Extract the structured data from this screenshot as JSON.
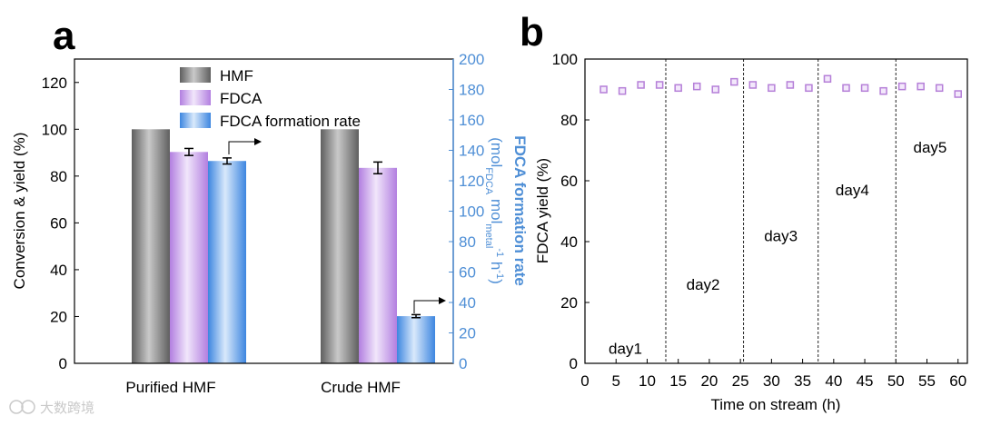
{
  "chart_data": [
    {
      "panel": "a",
      "type": "bar",
      "categories": [
        "Purified HMF",
        "Crude HMF"
      ],
      "ylabel": "Conversion & yield (%)",
      "ylim": [
        0,
        130
      ],
      "yticks": [
        0,
        20,
        40,
        60,
        80,
        100,
        120
      ],
      "y2label": "FDCA formation rate",
      "y2label_units": "(mol",
      "y2label_sub1": "FDCA",
      "y2label_mid": " mol",
      "y2label_sub2": "metal",
      "y2label_sup1": "-1",
      "y2label_end": " h",
      "y2label_sup2": "-1",
      "y2label_close": ")",
      "y2lim": [
        0,
        200
      ],
      "y2ticks": [
        0,
        20,
        40,
        60,
        80,
        100,
        120,
        140,
        160,
        180,
        200
      ],
      "series": [
        {
          "name": "HMF",
          "axis": "left",
          "values": [
            100,
            100
          ],
          "errors": [
            0,
            0
          ],
          "color": "#7a7a7a"
        },
        {
          "name": "FDCA",
          "axis": "left",
          "values": [
            90.3,
            83.5
          ],
          "errors": [
            1.5,
            2.5
          ],
          "color": "#c39be6"
        },
        {
          "name": "FDCA formation rate",
          "axis": "right",
          "values": [
            133,
            31
          ],
          "errors": [
            2,
            1
          ],
          "color": "#5b9be8"
        }
      ],
      "legend": "top-center"
    },
    {
      "panel": "b",
      "type": "scatter",
      "xlabel": "Time on stream (h)",
      "ylabel": "FDCA yield (%)",
      "xlim": [
        0,
        61.5
      ],
      "ylim": [
        0,
        100
      ],
      "xticks": [
        0,
        5,
        10,
        15,
        20,
        25,
        30,
        35,
        40,
        45,
        50,
        55,
        60
      ],
      "yticks": [
        0,
        20,
        40,
        60,
        80,
        100
      ],
      "x": [
        3,
        6,
        9,
        12,
        15,
        18,
        21,
        24,
        27,
        30,
        33,
        36,
        39,
        42,
        45,
        48,
        51,
        54,
        57,
        60
      ],
      "y": [
        90,
        89.5,
        91.5,
        91.5,
        90.5,
        91,
        90,
        92.5,
        91.5,
        90.5,
        91.5,
        90.5,
        93.5,
        90.5,
        90.5,
        89.5,
        91,
        91,
        90.5,
        88.5
      ],
      "separators": [
        13,
        25.5,
        37.5,
        50
      ],
      "day_labels": [
        {
          "text": "day1",
          "x": 6.5,
          "y": 5
        },
        {
          "text": "day2",
          "x": 19,
          "y": 26
        },
        {
          "text": "day3",
          "x": 31.5,
          "y": 42
        },
        {
          "text": "day4",
          "x": 43,
          "y": 57
        },
        {
          "text": "day5",
          "x": 55.5,
          "y": 71
        }
      ],
      "marker_color": "#b57fd8"
    }
  ],
  "panel_a_letter": "a",
  "panel_b_letter": "b",
  "watermark": "大数跨境"
}
